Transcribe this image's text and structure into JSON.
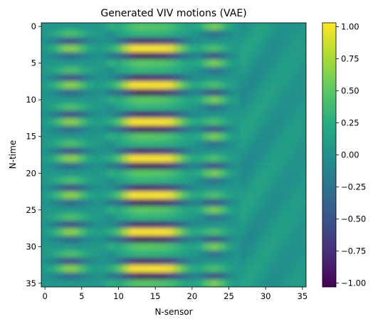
{
  "chart_data": {
    "type": "heatmap",
    "title": "Generated VIV motions (VAE)",
    "xlabel": "N-sensor",
    "ylabel": "N-time",
    "x_ticks": [
      "0",
      "5",
      "10",
      "15",
      "20",
      "25",
      "30",
      "35"
    ],
    "y_ticks": [
      "0",
      "5",
      "10",
      "15",
      "20",
      "25",
      "30",
      "35"
    ],
    "colorbar_ticks": [
      "1.00",
      "0.75",
      "0.50",
      "0.25",
      "0.00",
      "−0.25",
      "−0.50",
      "−0.75",
      "−1.00"
    ],
    "colorbar_range": [
      -1.03,
      1.03
    ],
    "colormap": "viridis",
    "grid_shape": [
      36,
      36
    ],
    "pattern_summary": {
      "oscillation_period_rows": 2.5,
      "left_band_peak_value": 0.65,
      "center_band_peak_value": 1.0,
      "right_band_peak_value": 0.6,
      "background_value": 0.05
    }
  }
}
